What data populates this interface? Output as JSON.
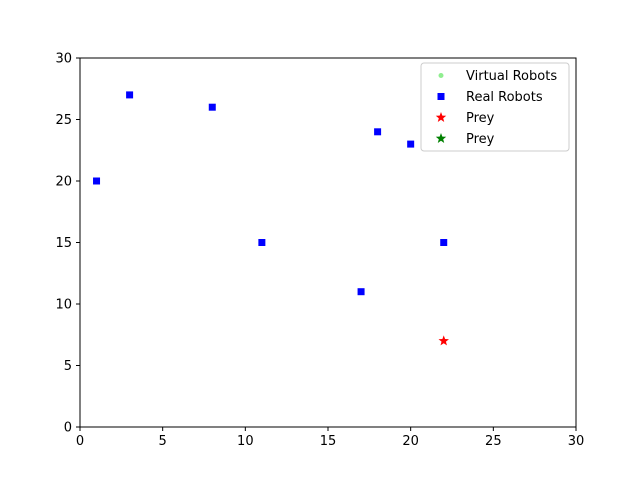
{
  "chart_data": {
    "type": "scatter",
    "title": "",
    "xlabel": "",
    "ylabel": "",
    "xlim": [
      0,
      30
    ],
    "ylim": [
      0,
      30
    ],
    "xticks": [
      "0",
      "5",
      "10",
      "15",
      "20",
      "25",
      "30"
    ],
    "yticks": [
      "0",
      "5",
      "10",
      "15",
      "20",
      "25",
      "30"
    ],
    "grid": false,
    "legend_position": "top-right",
    "series": [
      {
        "name": "Virtual Robots",
        "marker": "circle",
        "color": "#90ee90",
        "points": []
      },
      {
        "name": "Real Robots",
        "marker": "square",
        "color": "#0000ff",
        "points": [
          {
            "x": 1,
            "y": 20
          },
          {
            "x": 3,
            "y": 27
          },
          {
            "x": 8,
            "y": 26
          },
          {
            "x": 11,
            "y": 15
          },
          {
            "x": 17,
            "y": 11
          },
          {
            "x": 18,
            "y": 24
          },
          {
            "x": 20,
            "y": 23
          },
          {
            "x": 22,
            "y": 15
          }
        ]
      },
      {
        "name": "Prey",
        "marker": "star",
        "color": "#ff0000",
        "points": [
          {
            "x": 22,
            "y": 7
          }
        ]
      },
      {
        "name": "Prey",
        "marker": "star",
        "color": "#008000",
        "points": []
      }
    ]
  }
}
